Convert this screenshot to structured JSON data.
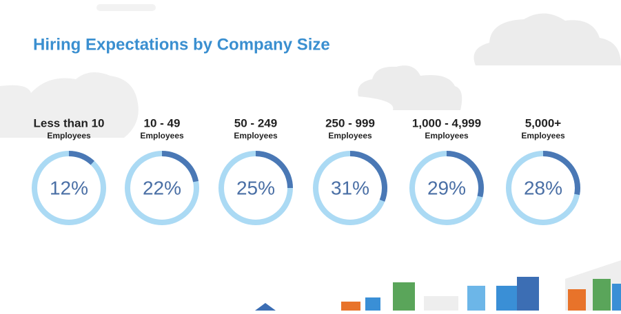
{
  "chart_data": {
    "type": "donut",
    "title": "Hiring Expectations by Company Size",
    "categories": [
      "Less than 10",
      "10 - 49",
      "50 - 249",
      "250 - 999",
      "1,000 - 4,999",
      "5,000+"
    ],
    "category_sublabels": [
      "Employees",
      "Employees",
      "Employees",
      "Employees",
      "Employees",
      "Employees"
    ],
    "values": [
      12,
      22,
      25,
      31,
      29,
      28
    ],
    "value_labels": [
      "12%",
      "22%",
      "25%",
      "31%",
      "29%",
      "28%"
    ],
    "color": "#4a78b5",
    "track_color": "#abdaf4"
  }
}
